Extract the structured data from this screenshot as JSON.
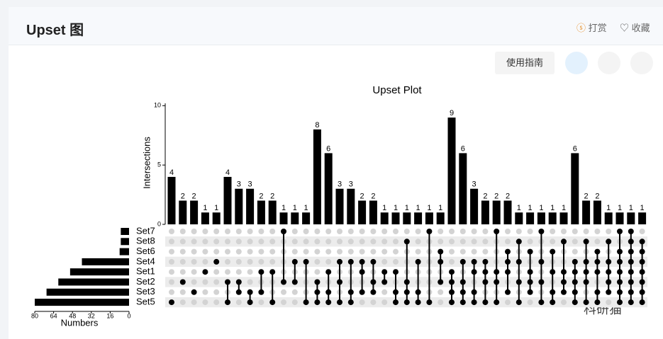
{
  "header": {
    "title": "Upset 图",
    "actions": [
      "打赏",
      "收藏"
    ]
  },
  "toolbar": {
    "guide": "使用指南"
  },
  "watermark": "科研猫",
  "chart_data": {
    "type": "upset",
    "title": "Upset Plot",
    "ylabel": "Intersections",
    "ylim": [
      0,
      10.2
    ],
    "yticks": [
      0,
      5,
      10
    ],
    "values": [
      4,
      2,
      2,
      1,
      1,
      4,
      3,
      3,
      2,
      2,
      1,
      1,
      1,
      8,
      6,
      3,
      3,
      2,
      2,
      1,
      1,
      1,
      1,
      1,
      1,
      9,
      6,
      3,
      2,
      2,
      2,
      1,
      1,
      1,
      1,
      1,
      6,
      2,
      2,
      1,
      1,
      1,
      1
    ],
    "members": [
      [
        "Set5"
      ],
      [
        "Set2"
      ],
      [
        "Set3"
      ],
      [
        "Set1"
      ],
      [
        "Set4"
      ],
      [
        "Set2",
        "Set5"
      ],
      [
        "Set2",
        "Set3"
      ],
      [
        "Set3",
        "Set5"
      ],
      [
        "Set1",
        "Set3"
      ],
      [
        "Set1",
        "Set5"
      ],
      [
        "Set7",
        "Set2"
      ],
      [
        "Set4",
        "Set2"
      ],
      [
        "Set4",
        "Set5"
      ],
      [
        "Set2",
        "Set3",
        "Set5"
      ],
      [
        "Set1",
        "Set3",
        "Set5"
      ],
      [
        "Set4",
        "Set2",
        "Set5"
      ],
      [
        "Set4",
        "Set3",
        "Set5"
      ],
      [
        "Set4",
        "Set1",
        "Set3"
      ],
      [
        "Set4",
        "Set2",
        "Set3"
      ],
      [
        "Set1",
        "Set2"
      ],
      [
        "Set1",
        "Set3",
        "Set5"
      ],
      [
        "Set8",
        "Set2",
        "Set3",
        "Set5"
      ],
      [
        "Set4",
        "Set3",
        "Set5"
      ],
      [
        "Set7",
        "Set5"
      ],
      [
        "Set6",
        "Set4",
        "Set2"
      ],
      [
        "Set1",
        "Set2",
        "Set3",
        "Set5"
      ],
      [
        "Set4",
        "Set2",
        "Set3",
        "Set5"
      ],
      [
        "Set4",
        "Set1",
        "Set3",
        "Set5"
      ],
      [
        "Set4",
        "Set1",
        "Set2",
        "Set5"
      ],
      [
        "Set7",
        "Set1",
        "Set2",
        "Set5"
      ],
      [
        "Set6",
        "Set4",
        "Set1",
        "Set3"
      ],
      [
        "Set8",
        "Set4",
        "Set2",
        "Set5"
      ],
      [
        "Set6",
        "Set1",
        "Set2",
        "Set3"
      ],
      [
        "Set7",
        "Set4",
        "Set2",
        "Set5"
      ],
      [
        "Set6",
        "Set1",
        "Set3",
        "Set5"
      ],
      [
        "Set8",
        "Set1",
        "Set2",
        "Set3"
      ],
      [
        "Set4",
        "Set1",
        "Set2",
        "Set3",
        "Set5"
      ],
      [
        "Set8",
        "Set4",
        "Set1",
        "Set2",
        "Set5"
      ],
      [
        "Set6",
        "Set4",
        "Set1",
        "Set3",
        "Set5"
      ],
      [
        "Set8",
        "Set4",
        "Set1",
        "Set2",
        "Set3"
      ],
      [
        "Set7",
        "Set6",
        "Set4",
        "Set1",
        "Set2",
        "Set3",
        "Set5"
      ],
      [
        "Set7",
        "Set8",
        "Set6",
        "Set4",
        "Set1",
        "Set2",
        "Set3",
        "Set5"
      ],
      [
        "Set8",
        "Set6",
        "Set4",
        "Set1",
        "Set2",
        "Set3",
        "Set5"
      ]
    ],
    "sets": [
      "Set7",
      "Set8",
      "Set6",
      "Set4",
      "Set1",
      "Set2",
      "Set3",
      "Set5"
    ],
    "set_sizes": [
      7,
      7,
      8,
      40,
      50,
      60,
      70,
      80
    ],
    "xlabel": "Numbers",
    "xlim": [
      0,
      80
    ],
    "xticks": [
      80,
      64,
      48,
      32,
      16,
      0
    ],
    "color": "#000000"
  }
}
